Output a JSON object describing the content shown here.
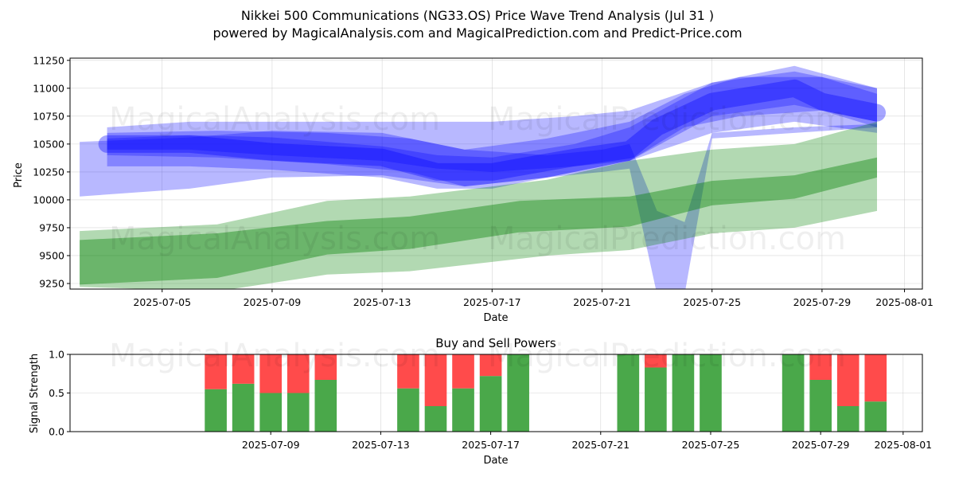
{
  "header": {
    "title": "Nikkei 500 Communications (NG33.OS) Price Wave Trend Analysis (Jul 31 )",
    "subtitle": "powered by MagicalAnalysis.com and MagicalPrediction.com and Predict-Price.com"
  },
  "watermarks": [
    "MagicalAnalysis.com",
    "MagicalPrediction.com"
  ],
  "colors": {
    "wave": "#0000ff",
    "trend": "#008000",
    "buy": "#4aa84a",
    "sell": "#ff4b4b"
  },
  "chart_data": [
    {
      "type": "area",
      "xlabel": "Date",
      "ylabel": "Price",
      "xlim": [
        "2025-07-02",
        "2025-08-01"
      ],
      "ylim": [
        9200,
        11270
      ],
      "xticks": [
        "2025-07-05",
        "2025-07-09",
        "2025-07-13",
        "2025-07-17",
        "2025-07-21",
        "2025-07-25",
        "2025-07-29",
        "2025-08-01"
      ],
      "yticks": [
        9250,
        9500,
        9750,
        10000,
        10250,
        10500,
        10750,
        11000,
        11250
      ],
      "grid": true,
      "series": [
        {
          "kind": "wave-band",
          "x": [
            "2025-07-03",
            "2025-07-07",
            "2025-07-11",
            "2025-07-14",
            "2025-07-16",
            "2025-07-19",
            "2025-07-22",
            "2025-07-24",
            "2025-07-26",
            "2025-07-29",
            "2025-07-31"
          ],
          "upper": [
            10600,
            10620,
            10600,
            10550,
            10450,
            10550,
            10700,
            10950,
            11100,
            11100,
            10950
          ],
          "lower": [
            10400,
            10380,
            10320,
            10250,
            10120,
            10200,
            10350,
            10650,
            10750,
            10800,
            10650
          ]
        },
        {
          "kind": "wave-band",
          "x": [
            "2025-07-03",
            "2025-07-06",
            "2025-07-09",
            "2025-07-13",
            "2025-07-15",
            "2025-07-17",
            "2025-07-20",
            "2025-07-22",
            "2025-07-25",
            "2025-07-28",
            "2025-07-31"
          ],
          "upper": [
            10650,
            10700,
            10700,
            10700,
            10700,
            10700,
            10750,
            10800,
            11050,
            11150,
            11000
          ],
          "lower": [
            10450,
            10450,
            10400,
            10350,
            10280,
            10250,
            10300,
            10350,
            10600,
            10700,
            10600
          ]
        },
        {
          "kind": "wave-band",
          "x": [
            "2025-07-02",
            "2025-07-06",
            "2025-07-09",
            "2025-07-13",
            "2025-07-16",
            "2025-07-19",
            "2025-07-21",
            "2025-07-22",
            "2025-07-23",
            "2025-07-24",
            "2025-07-25",
            "2025-07-28",
            "2025-07-31"
          ],
          "upper": [
            10520,
            10560,
            10620,
            10600,
            10450,
            10400,
            10450,
            10500,
            9900,
            9800,
            10600,
            10650,
            10680
          ],
          "lower": [
            10030,
            10100,
            10200,
            10220,
            10120,
            10200,
            10250,
            10280,
            9150,
            9150,
            10550,
            10600,
            10650
          ]
        },
        {
          "kind": "wave-band",
          "x": [
            "2025-07-03",
            "2025-07-06",
            "2025-07-09",
            "2025-07-13",
            "2025-07-15",
            "2025-07-17",
            "2025-07-20",
            "2025-07-22",
            "2025-07-25",
            "2025-07-28",
            "2025-07-31"
          ],
          "upper": [
            10550,
            10580,
            10560,
            10480,
            10400,
            10380,
            10500,
            10650,
            11050,
            11200,
            11000
          ],
          "lower": [
            10300,
            10300,
            10270,
            10200,
            10100,
            10100,
            10250,
            10350,
            10750,
            10850,
            10700
          ]
        },
        {
          "kind": "wave-line",
          "x": [
            "2025-07-03",
            "2025-07-06",
            "2025-07-09",
            "2025-07-13",
            "2025-07-15",
            "2025-07-17",
            "2025-07-20",
            "2025-07-22",
            "2025-07-23",
            "2025-07-25",
            "2025-07-28",
            "2025-07-29",
            "2025-07-31"
          ],
          "values": [
            10500,
            10500,
            10430,
            10380,
            10250,
            10250,
            10380,
            10450,
            10650,
            10880,
            11000,
            10880,
            10780
          ]
        },
        {
          "kind": "trend-band",
          "x": [
            "2025-07-02",
            "2025-07-07",
            "2025-07-11",
            "2025-07-14",
            "2025-07-19",
            "2025-07-22",
            "2025-07-25",
            "2025-07-28",
            "2025-07-31"
          ],
          "upper": [
            9720,
            9780,
            9990,
            10030,
            10180,
            10350,
            10450,
            10500,
            10700
          ],
          "lower": [
            9220,
            9180,
            9330,
            9360,
            9500,
            9550,
            9700,
            9750,
            9900
          ]
        },
        {
          "kind": "trend-band",
          "x": [
            "2025-07-02",
            "2025-07-07",
            "2025-07-11",
            "2025-07-14",
            "2025-07-18",
            "2025-07-22",
            "2025-07-25",
            "2025-07-28",
            "2025-07-31"
          ],
          "upper": [
            9640,
            9700,
            9810,
            9850,
            9990,
            10030,
            10170,
            10220,
            10380
          ],
          "lower": [
            9240,
            9300,
            9510,
            9560,
            9710,
            9760,
            9950,
            10010,
            10200
          ]
        }
      ]
    },
    {
      "type": "bar",
      "title": "Buy and Sell Powers",
      "xlabel": "Date",
      "ylabel": "Signal Strength",
      "ylim": [
        0,
        1
      ],
      "yticks": [
        "0.0",
        "0.5",
        "1.0"
      ],
      "xticks": [
        "2025-07-09",
        "2025-07-13",
        "2025-07-17",
        "2025-07-21",
        "2025-07-25",
        "2025-07-29",
        "2025-08-01"
      ],
      "grid": true,
      "dates": [
        "2025-07-07",
        "2025-07-08",
        "2025-07-09",
        "2025-07-10",
        "2025-07-11",
        "2025-07-14",
        "2025-07-15",
        "2025-07-16",
        "2025-07-17",
        "2025-07-18",
        "2025-07-22",
        "2025-07-23",
        "2025-07-24",
        "2025-07-25",
        "2025-07-28",
        "2025-07-29",
        "2025-07-30",
        "2025-07-31"
      ],
      "series": [
        {
          "name": "buy",
          "values": [
            0.55,
            0.62,
            0.5,
            0.5,
            0.67,
            0.56,
            0.33,
            0.56,
            0.72,
            1.0,
            1.0,
            0.83,
            1.0,
            1.0,
            1.0,
            0.67,
            0.33,
            0.39
          ]
        },
        {
          "name": "sell",
          "values": [
            0.45,
            0.38,
            0.5,
            0.5,
            0.33,
            0.44,
            0.67,
            0.44,
            0.28,
            0.0,
            0.0,
            0.17,
            0.0,
            0.0,
            0.0,
            0.33,
            0.67,
            0.61
          ]
        }
      ]
    }
  ]
}
